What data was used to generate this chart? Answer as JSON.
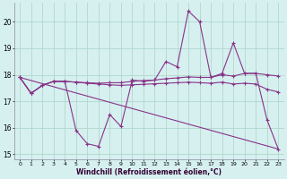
{
  "background_color": "#d6f0f0",
  "grid_color": "#b0d8cc",
  "line_color": "#883388",
  "xlabel": "Windchill (Refroidissement éolien,°C)",
  "xlim": [
    -0.5,
    23.5
  ],
  "ylim": [
    14.8,
    20.7
  ],
  "yticks": [
    15,
    16,
    17,
    18,
    19,
    20
  ],
  "xticks": [
    0,
    1,
    2,
    3,
    4,
    5,
    6,
    7,
    8,
    9,
    10,
    11,
    12,
    13,
    14,
    15,
    16,
    17,
    18,
    19,
    20,
    21,
    22,
    23
  ],
  "series": [
    {
      "x": [
        0,
        1,
        2,
        3,
        4,
        5,
        6,
        7,
        8,
        9,
        10,
        11,
        12,
        13,
        14,
        15,
        16,
        17,
        18,
        19,
        20,
        21,
        22,
        23
      ],
      "y": [
        17.9,
        17.3,
        17.6,
        17.75,
        17.75,
        15.9,
        15.4,
        15.3,
        16.5,
        16.05,
        17.8,
        17.75,
        17.8,
        18.5,
        18.3,
        20.4,
        20.0,
        17.9,
        18.05,
        19.2,
        18.05,
        18.05,
        16.3,
        15.2
      ]
    },
    {
      "x": [
        0,
        1,
        2,
        3,
        4,
        5,
        6,
        7,
        8,
        9,
        10,
        11,
        12,
        13,
        14,
        15,
        16,
        17,
        18,
        19,
        20,
        21,
        22,
        23
      ],
      "y": [
        17.9,
        17.3,
        17.6,
        17.75,
        17.75,
        17.72,
        17.7,
        17.68,
        17.7,
        17.7,
        17.75,
        17.78,
        17.8,
        17.85,
        17.88,
        17.92,
        17.9,
        17.9,
        18.0,
        17.95,
        18.05,
        18.05,
        18.0,
        17.95
      ]
    },
    {
      "x": [
        0,
        1,
        2,
        3,
        4,
        5,
        6,
        7,
        8,
        9,
        10,
        11,
        12,
        13,
        14,
        15,
        16,
        17,
        18,
        19,
        20,
        21,
        22,
        23
      ],
      "y": [
        17.9,
        17.3,
        17.6,
        17.75,
        17.75,
        17.72,
        17.68,
        17.65,
        17.62,
        17.6,
        17.62,
        17.64,
        17.66,
        17.68,
        17.7,
        17.72,
        17.7,
        17.68,
        17.72,
        17.65,
        17.68,
        17.65,
        17.45,
        17.35
      ]
    },
    {
      "x": [
        0,
        23
      ],
      "y": [
        17.9,
        15.2
      ]
    }
  ]
}
